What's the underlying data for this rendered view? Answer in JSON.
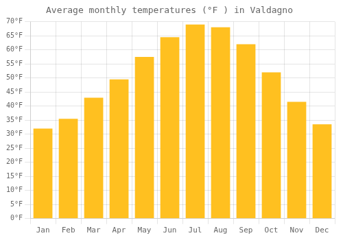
{
  "chart_data": {
    "type": "bar",
    "title": "Average monthly temperatures (°F ) in Valdagno",
    "categories": [
      "Jan",
      "Feb",
      "Mar",
      "Apr",
      "May",
      "Jun",
      "Jul",
      "Aug",
      "Sep",
      "Oct",
      "Nov",
      "Dec"
    ],
    "values": [
      32,
      35.5,
      43,
      49.5,
      57.5,
      64.5,
      69,
      68,
      62,
      52,
      41.5,
      33.5
    ],
    "color": "#FFC020",
    "ylim": [
      0,
      70
    ],
    "yticks": [
      {
        "value": 0,
        "label": "0°F"
      },
      {
        "value": 5,
        "label": "5°F"
      },
      {
        "value": 10,
        "label": "10°F"
      },
      {
        "value": 15,
        "label": "15°F"
      },
      {
        "value": 20,
        "label": "20°F"
      },
      {
        "value": 25,
        "label": "25°F"
      },
      {
        "value": 30,
        "label": "30°F"
      },
      {
        "value": 35,
        "label": "35°F"
      },
      {
        "value": 40,
        "label": "40°F"
      },
      {
        "value": 45,
        "label": "45°F"
      },
      {
        "value": 50,
        "label": "50°F"
      },
      {
        "value": 55,
        "label": "55°F"
      },
      {
        "value": 60,
        "label": "60°F"
      },
      {
        "value": 65,
        "label": "65°F"
      },
      {
        "value": 70,
        "label": "70°F"
      }
    ],
    "grid": true
  }
}
